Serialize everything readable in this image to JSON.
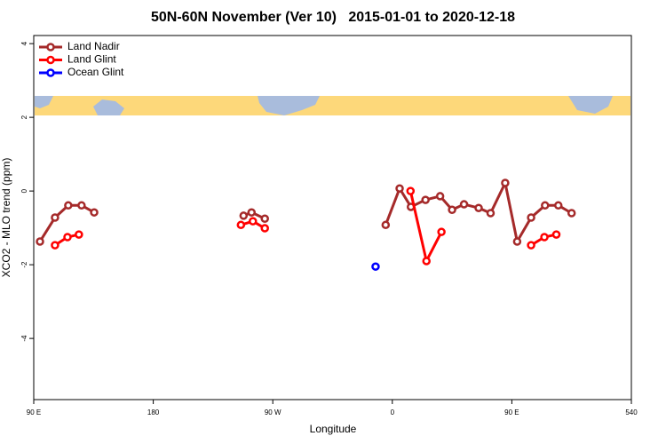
{
  "chart_data": {
    "type": "line",
    "title": "50N-60N November (Ver 10)   2015-01-01 to 2020-12-18",
    "x_label": "Longitude",
    "y_label": "XCO2 - MLO trend (ppm)",
    "xlim": [
      90,
      540
    ],
    "xticks": [
      {
        "value": 90,
        "label": "90 E"
      },
      180,
      {
        "value": 270,
        "label": "90 W"
      },
      {
        "value": 360,
        "label": "0"
      },
      {
        "value": 450,
        "label": "90 E"
      },
      540
    ],
    "ylim": [
      -5.66,
      4.22
    ],
    "yticks": [
      -4,
      -2,
      0,
      2,
      4
    ],
    "legend": "top-left",
    "series": [
      {
        "name": "Land Nadir",
        "color": "#a52a2a",
        "x": [
          94.7,
          106,
          116,
          126,
          135.5,
          null,
          248,
          254,
          264,
          null,
          355,
          365.5,
          374,
          385,
          396,
          405,
          414,
          425,
          434,
          445,
          454,
          464.5,
          475,
          485,
          495
        ],
        "values": [
          -1.37,
          -0.72,
          -0.39,
          -0.39,
          -0.58,
          null,
          -0.67,
          -0.58,
          -0.75,
          null,
          -0.92,
          0.07,
          -0.43,
          -0.24,
          -0.14,
          -0.51,
          -0.36,
          -0.46,
          -0.6,
          0.22,
          -1.37,
          -0.72,
          -0.39,
          -0.39,
          -0.6
        ]
      },
      {
        "name": "Land Glint",
        "color": "#ff0000",
        "x": [
          106,
          115.4,
          124,
          null,
          246,
          255,
          264,
          null,
          373.7,
          385.7,
          397,
          null,
          464.5,
          474.5,
          483.5
        ],
        "values": [
          -1.47,
          -1.25,
          -1.18,
          null,
          -0.92,
          -0.82,
          -1.01,
          null,
          0.0,
          -1.9,
          -1.11,
          null,
          -1.47,
          -1.25,
          -1.18
        ]
      },
      {
        "name": "Ocean Glint",
        "color": "#0000ff",
        "x": [
          347.4
        ],
        "values": [
          -2.05
        ]
      }
    ]
  }
}
